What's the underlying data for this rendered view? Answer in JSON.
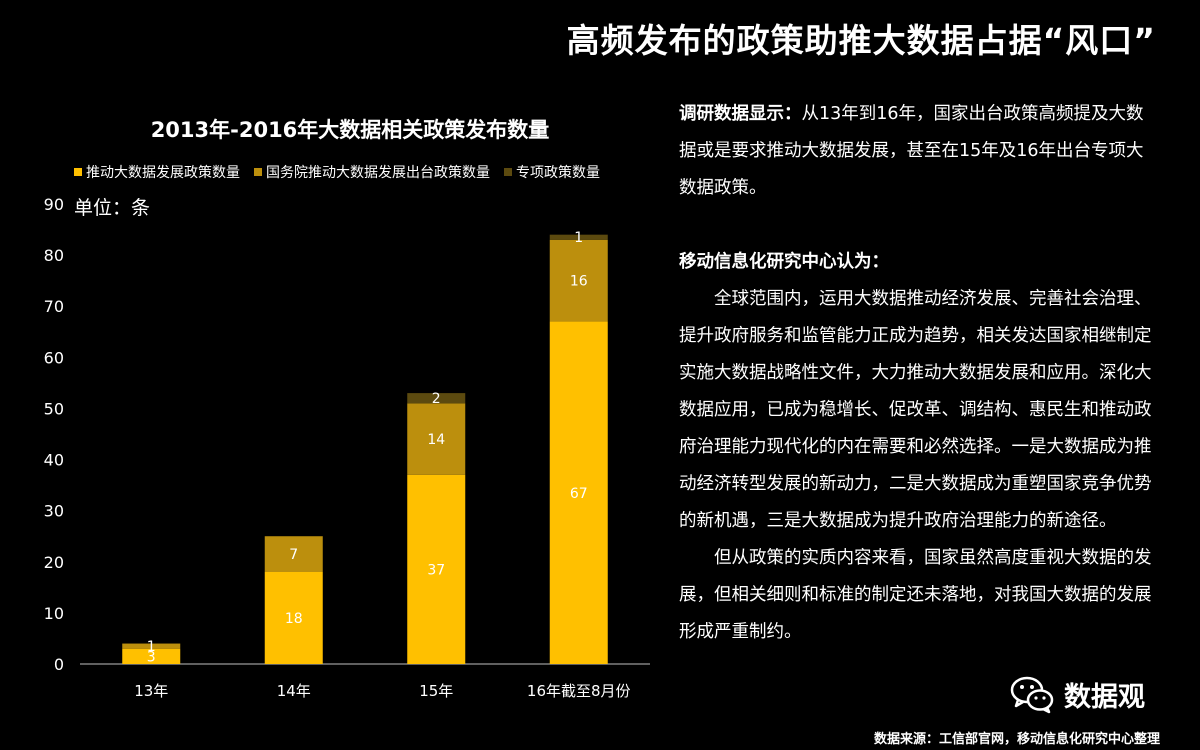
{
  "page_title": "高频发布的政策助推大数据占据“风口”",
  "chart_data": {
    "type": "bar",
    "stacked": true,
    "title": "2013年-2016年大数据相关政策发布数量",
    "unit_label": "单位：条",
    "categories": [
      "13年",
      "14年",
      "15年",
      "16年截至8月份"
    ],
    "series": [
      {
        "name": "推动大数据发展政策数量",
        "values": [
          3,
          18,
          37,
          67
        ],
        "color": "#FFC000"
      },
      {
        "name": "国务院推动大数据发展出台政策数量",
        "values": [
          1,
          7,
          14,
          16
        ],
        "color": "#BC8F0D"
      },
      {
        "name": "专项政策数量",
        "values": [
          0,
          0,
          2,
          1
        ],
        "color": "#5C4A0F"
      }
    ],
    "ylim": [
      0,
      90
    ],
    "yticks": [
      0,
      10,
      20,
      30,
      40,
      50,
      60,
      70,
      80,
      90
    ],
    "grid": false,
    "legend_position": "top"
  },
  "right_panel": {
    "lead_key": "调研数据显示：",
    "lead_text": "从13年到16年，国家出台政策高频提及大数据或是要求推动大数据发展，甚至在15年及16年出台专项大数据政策。",
    "section_head": "移动信息化研究中心认为：",
    "para1": "全球范围内，运用大数据推动经济发展、完善社会治理、提升政府服务和监管能力正成为趋势，相关发达国家相继制定实施大数据战略性文件，大力推动大数据发展和应用。深化大数据应用，已成为稳增长、促改革、调结构、惠民生和推动政府治理能力现代化的内在需要和必然选择。一是大数据成为推动经济转型发展的新动力，二是大数据成为重塑国家竞争优势的新机遇，三是大数据成为提升政府治理能力的新途径。",
    "para2": "但从政策的实质内容来看，国家虽然高度重视大数据的发展，但相关细则和标准的制定还未落地，对我国大数据的发展形成严重制约。"
  },
  "brand": {
    "name": "数据观",
    "icon": "wechat-icon"
  },
  "source": "数据来源：工信部官网，移动信息化研究中心整理"
}
